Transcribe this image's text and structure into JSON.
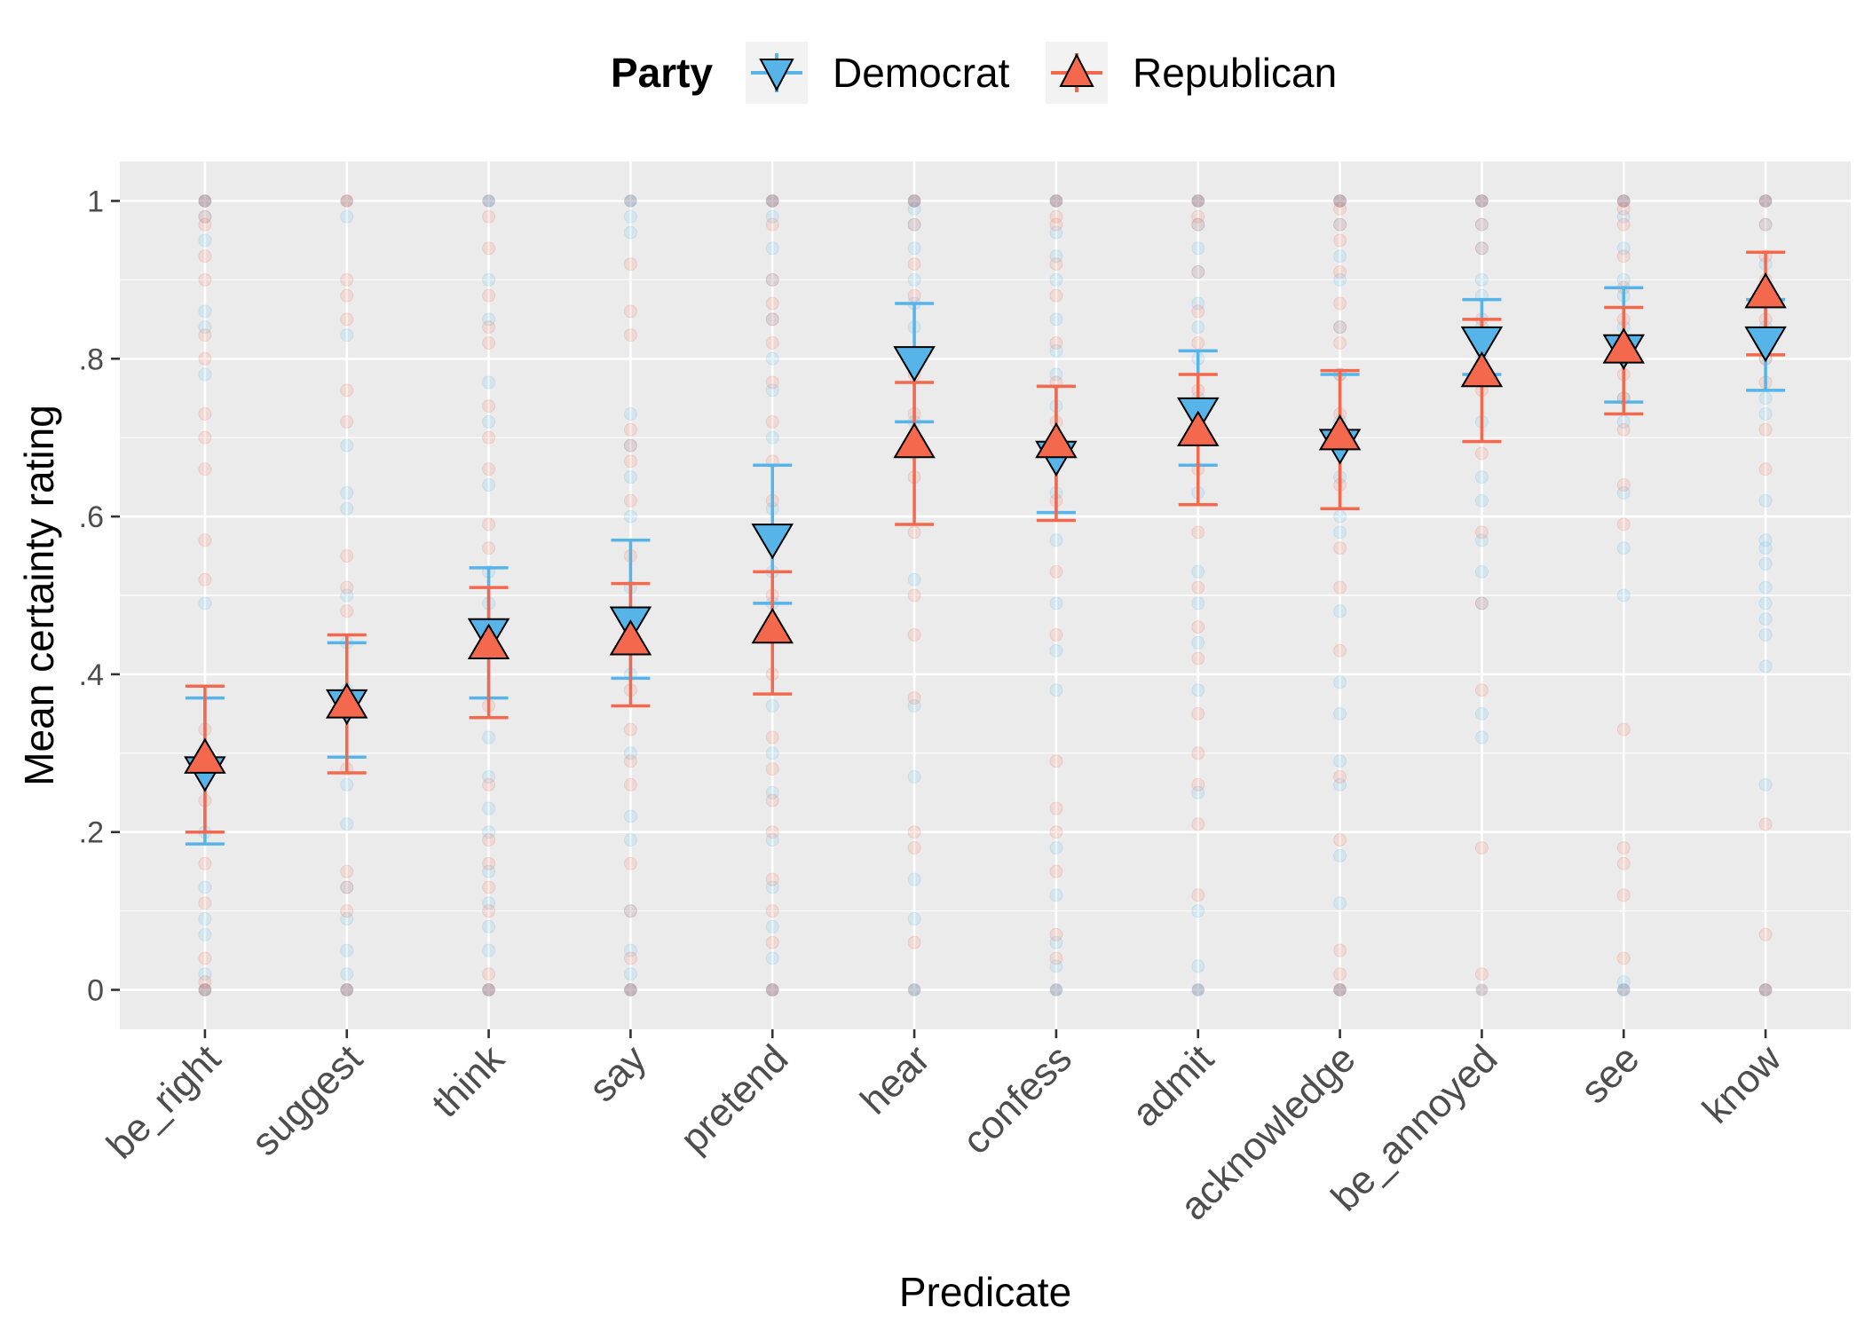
{
  "chart_data": {
    "type": "scatter",
    "xlabel": "Predicate",
    "ylabel": "Mean certainty rating",
    "ylim": [
      -0.05,
      1.05
    ],
    "y_ticks": [
      {
        "value": 0,
        "label": "0"
      },
      {
        "value": 0.2,
        "label": ".2"
      },
      {
        "value": 0.4,
        "label": ".4"
      },
      {
        "value": 0.6,
        "label": ".6"
      },
      {
        "value": 0.8,
        "label": ".8"
      },
      {
        "value": 1,
        "label": "1"
      }
    ],
    "categories": [
      "be_right",
      "suggest",
      "think",
      "say",
      "pretend",
      "hear",
      "confess",
      "admit",
      "acknowledge",
      "be_annoyed",
      "see",
      "know"
    ],
    "legend": {
      "title": "Party",
      "position": "top"
    },
    "grid": true,
    "series": [
      {
        "name": "Democrat",
        "color": "#56B4E9",
        "marker": "triangle-down",
        "mean": [
          0.28,
          0.365,
          0.455,
          0.47,
          0.575,
          0.8,
          0.68,
          0.735,
          0.695,
          0.825,
          0.815,
          0.825
        ],
        "lower": [
          0.185,
          0.295,
          0.37,
          0.395,
          0.49,
          0.72,
          0.605,
          0.665,
          0.61,
          0.78,
          0.745,
          0.76
        ],
        "upper": [
          0.37,
          0.44,
          0.535,
          0.57,
          0.665,
          0.87,
          0.765,
          0.81,
          0.78,
          0.875,
          0.89,
          0.875
        ]
      },
      {
        "name": "Republican",
        "color": "#F4694E",
        "marker": "triangle-up",
        "mean": [
          0.29,
          0.36,
          0.435,
          0.44,
          0.455,
          0.69,
          0.69,
          0.705,
          0.7,
          0.78,
          0.81,
          0.88
        ],
        "lower": [
          0.2,
          0.275,
          0.345,
          0.36,
          0.375,
          0.59,
          0.595,
          0.615,
          0.61,
          0.695,
          0.73,
          0.805
        ],
        "upper": [
          0.385,
          0.45,
          0.51,
          0.515,
          0.53,
          0.77,
          0.765,
          0.78,
          0.785,
          0.85,
          0.865,
          0.935
        ]
      }
    ],
    "raw_points": {
      "Democrat": [
        [
          0,
          0.02,
          0.07,
          0.09,
          0.13,
          0.2,
          0.27,
          0.3,
          0.49,
          0.78,
          0.84,
          0.86,
          0.95,
          0.98,
          1
        ],
        [
          0,
          0.02,
          0.05,
          0.09,
          0.13,
          0.21,
          0.26,
          0.38,
          0.44,
          0.5,
          0.61,
          0.63,
          0.69,
          0.83,
          0.98
        ],
        [
          0,
          0.05,
          0.08,
          0.11,
          0.15,
          0.2,
          0.23,
          0.27,
          0.32,
          0.45,
          0.49,
          0.53,
          0.64,
          0.72,
          0.77,
          0.85,
          0.9,
          1
        ],
        [
          0,
          0.02,
          0.05,
          0.1,
          0.19,
          0.22,
          0.3,
          0.4,
          0.46,
          0.51,
          0.6,
          0.65,
          0.69,
          0.73,
          0.96,
          0.98,
          1
        ],
        [
          0,
          0.04,
          0.08,
          0.13,
          0.19,
          0.25,
          0.3,
          0.36,
          0.49,
          0.53,
          0.61,
          0.7,
          0.76,
          0.8,
          0.85,
          0.9,
          0.94,
          0.98,
          1
        ],
        [
          0,
          0.09,
          0.14,
          0.27,
          0.36,
          0.52,
          0.68,
          0.72,
          0.8,
          0.84,
          0.87,
          0.9,
          0.94,
          0.97,
          0.99,
          1
        ],
        [
          0,
          0.03,
          0.06,
          0.12,
          0.18,
          0.38,
          0.43,
          0.49,
          0.57,
          0.63,
          0.7,
          0.74,
          0.78,
          0.81,
          0.85,
          0.9,
          0.93,
          0.96,
          1
        ],
        [
          0,
          0.03,
          0.1,
          0.25,
          0.38,
          0.44,
          0.49,
          0.53,
          0.63,
          0.7,
          0.75,
          0.8,
          0.84,
          0.87,
          0.91,
          0.94,
          0.97,
          1
        ],
        [
          0,
          0.11,
          0.17,
          0.26,
          0.29,
          0.35,
          0.39,
          0.48,
          0.58,
          0.6,
          0.65,
          0.72,
          0.78,
          0.84,
          0.9,
          0.93,
          0.97,
          1
        ],
        [
          0.32,
          0.35,
          0.49,
          0.53,
          0.57,
          0.62,
          0.65,
          0.72,
          0.8,
          0.84,
          0.88,
          0.9,
          0.94,
          0.97,
          1
        ],
        [
          0,
          0.01,
          0.5,
          0.56,
          0.63,
          0.72,
          0.75,
          0.8,
          0.84,
          0.88,
          0.9,
          0.94,
          0.98,
          1
        ],
        [
          0,
          0.26,
          0.41,
          0.45,
          0.47,
          0.49,
          0.51,
          0.54,
          0.56,
          0.57,
          0.62,
          0.73,
          0.75,
          0.8,
          0.84,
          0.88,
          0.92,
          0.97,
          1
        ]
      ],
      "Republican": [
        [
          0,
          0.01,
          0.04,
          0.11,
          0.16,
          0.24,
          0.33,
          0.52,
          0.57,
          0.66,
          0.7,
          0.73,
          0.8,
          0.83,
          0.9,
          0.93,
          0.97,
          0.98,
          1
        ],
        [
          0,
          0.1,
          0.13,
          0.15,
          0.28,
          0.48,
          0.51,
          0.55,
          0.72,
          0.76,
          0.85,
          0.88,
          0.9,
          1
        ],
        [
          0,
          0.02,
          0.1,
          0.13,
          0.16,
          0.19,
          0.26,
          0.36,
          0.45,
          0.56,
          0.59,
          0.66,
          0.7,
          0.74,
          0.82,
          0.84,
          0.88,
          0.94,
          0.98
        ],
        [
          0,
          0.04,
          0.1,
          0.16,
          0.26,
          0.29,
          0.33,
          0.38,
          0.55,
          0.62,
          0.67,
          0.69,
          0.71,
          0.83,
          0.86,
          0.92
        ],
        [
          0,
          0.06,
          0.1,
          0.14,
          0.2,
          0.24,
          0.28,
          0.32,
          0.4,
          0.5,
          0.57,
          0.62,
          0.67,
          0.72,
          0.77,
          0.82,
          0.85,
          0.87,
          0.9,
          0.97,
          1
        ],
        [
          0.06,
          0.18,
          0.2,
          0.37,
          0.45,
          0.5,
          0.58,
          0.65,
          0.73,
          0.78,
          0.88,
          0.92,
          0.97,
          1
        ],
        [
          0.04,
          0.07,
          0.15,
          0.2,
          0.23,
          0.29,
          0.45,
          0.53,
          0.62,
          0.67,
          0.72,
          0.77,
          0.82,
          0.88,
          0.92,
          0.97,
          0.98,
          1
        ],
        [
          0.12,
          0.21,
          0.26,
          0.3,
          0.35,
          0.42,
          0.46,
          0.51,
          0.58,
          0.66,
          0.72,
          0.76,
          0.82,
          0.86,
          0.91,
          0.97,
          0.98,
          1
        ],
        [
          0,
          0.02,
          0.05,
          0.19,
          0.27,
          0.43,
          0.51,
          0.56,
          0.64,
          0.7,
          0.73,
          0.78,
          0.82,
          0.84,
          0.87,
          0.91,
          0.95,
          0.97,
          0.99,
          1
        ],
        [
          0.02,
          0.18,
          0.38,
          0.49,
          0.58,
          0.68,
          0.76,
          0.85,
          0.94,
          0.97,
          1
        ],
        [
          0.04,
          0.12,
          0.16,
          0.18,
          0.33,
          0.59,
          0.64,
          0.71,
          0.75,
          0.78,
          0.85,
          0.89,
          0.93,
          0.97,
          0.99,
          1
        ],
        [
          0,
          0.07,
          0.21,
          0.66,
          0.71,
          0.77,
          0.8,
          0.85,
          0.9,
          0.93,
          0.97,
          1
        ]
      ]
    }
  }
}
